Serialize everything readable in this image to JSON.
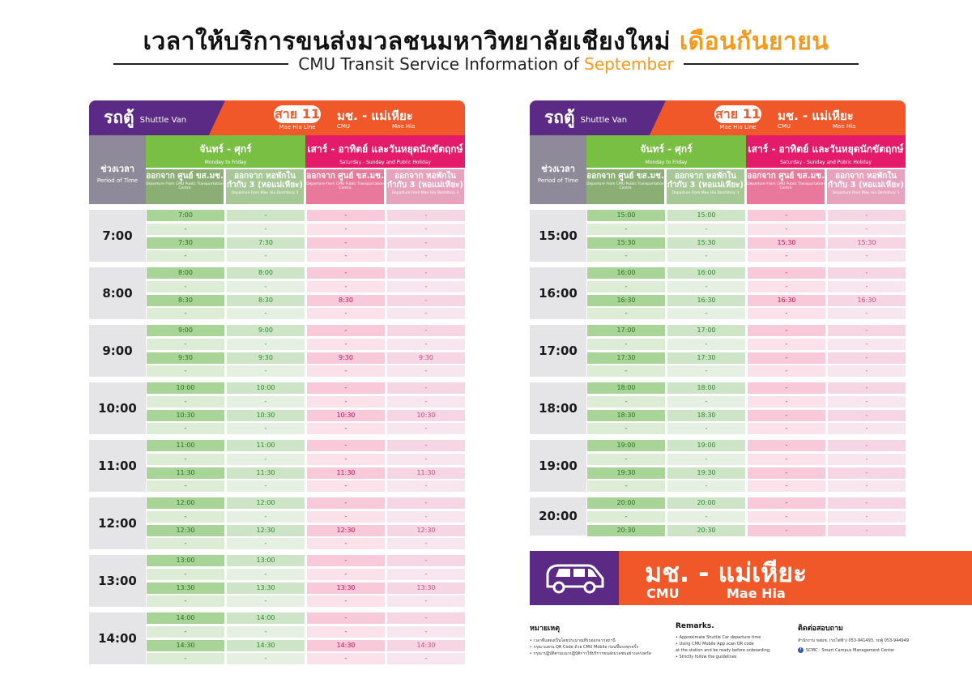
{
  "title": {
    "main": "เวลาให้บริการขนส่งมวลชนมหาวิทยาลัยเชียงใหม่",
    "month_th": "เดือนกันยายน",
    "sub": "CMU Transit Service Information of",
    "month_en": "September"
  },
  "header": {
    "van_th": "รถตู้",
    "van_en": "Shuttle Van",
    "line_label": "สาย 11",
    "line_en": "Mae Hia Line",
    "route_th": "มช. - แม่เหียะ",
    "route_en_from": "CMU",
    "route_en_to": "Mae Hia"
  },
  "columns": {
    "period_th": "ช่วงเวลา",
    "period_en": "Period of Time",
    "weekday_th": "จันทร์ - ศุกร์",
    "weekday_en": "Monday to Friday",
    "weekend_th": "เสาร์ - อาทิตย์ และวันหยุดนักขัตฤกษ์",
    "weekend_en": "Saturday - Sunday and Public Holiday",
    "depart_center_th": "ออกจาก ศูนย์ ขส.มช.",
    "depart_center_en": "Departure From CMU Public Transportation Centre",
    "depart_dorm_th": "ออกจาก หอพักในกำกับ 3 (หอแม่เหียะ)",
    "depart_dorm_en": "Departure from Mae Hia Dormitory 3"
  },
  "left_blocks": [
    {
      "hour": "7:00",
      "rows": [
        [
          "7:00",
          "-",
          "-",
          "-"
        ],
        [
          "-",
          "-",
          "-",
          "-"
        ],
        [
          "7:30",
          "7:30",
          "-",
          "-"
        ],
        [
          "-",
          "-",
          "-",
          "-"
        ]
      ]
    },
    {
      "hour": "8:00",
      "rows": [
        [
          "8:00",
          "8:00",
          "-",
          "-"
        ],
        [
          "-",
          "-",
          "-",
          "-"
        ],
        [
          "8:30",
          "8:30",
          "8:30",
          "-"
        ],
        [
          "-",
          "-",
          "-",
          "-"
        ]
      ]
    },
    {
      "hour": "9:00",
      "rows": [
        [
          "9:00",
          "9:00",
          "-",
          "-"
        ],
        [
          "-",
          "-",
          "-",
          "-"
        ],
        [
          "9:30",
          "9:30",
          "9:30",
          "9:30"
        ],
        [
          "-",
          "-",
          "-",
          "-"
        ]
      ]
    },
    {
      "hour": "10:00",
      "rows": [
        [
          "10:00",
          "10:00",
          "-",
          "-"
        ],
        [
          "-",
          "-",
          "-",
          "-"
        ],
        [
          "10:30",
          "10:30",
          "10:30",
          "10:30"
        ],
        [
          "-",
          "-",
          "-",
          "-"
        ]
      ]
    },
    {
      "hour": "11:00",
      "rows": [
        [
          "11:00",
          "11:00",
          "-",
          "-"
        ],
        [
          "-",
          "-",
          "-",
          "-"
        ],
        [
          "11:30",
          "11:30",
          "11:30",
          "11:30"
        ],
        [
          "-",
          "-",
          "-",
          "-"
        ]
      ]
    },
    {
      "hour": "12:00",
      "rows": [
        [
          "12:00",
          "12:00",
          "-",
          "-"
        ],
        [
          "-",
          "-",
          "-",
          "-"
        ],
        [
          "12:30",
          "12:30",
          "12:30",
          "12:30"
        ],
        [
          "-",
          "-",
          "-",
          "-"
        ]
      ]
    },
    {
      "hour": "13:00",
      "rows": [
        [
          "13:00",
          "13:00",
          "-",
          "-"
        ],
        [
          "-",
          "-",
          "-",
          "-"
        ],
        [
          "13:30",
          "13:30",
          "13:30",
          "13:30"
        ],
        [
          "-",
          "-",
          "-",
          "-"
        ]
      ]
    },
    {
      "hour": "14:00",
      "rows": [
        [
          "14:00",
          "14:00",
          "-",
          "-"
        ],
        [
          "-",
          "-",
          "-",
          "-"
        ],
        [
          "14:30",
          "14:30",
          "14:30",
          "14:30"
        ],
        [
          "-",
          "-",
          "-",
          "-"
        ]
      ]
    }
  ],
  "right_blocks": [
    {
      "hour": "15:00",
      "rows": [
        [
          "15:00",
          "15:00",
          "-",
          "-"
        ],
        [
          "-",
          "-",
          "-",
          "-"
        ],
        [
          "15:30",
          "15:30",
          "15:30",
          "15:30"
        ],
        [
          "-",
          "-",
          "-",
          "-"
        ]
      ]
    },
    {
      "hour": "16:00",
      "rows": [
        [
          "16:00",
          "16:00",
          "-",
          "-"
        ],
        [
          "-",
          "-",
          "-",
          "-"
        ],
        [
          "16:30",
          "16:30",
          "16:30",
          "16:30"
        ],
        [
          "-",
          "-",
          "-",
          "-"
        ]
      ]
    },
    {
      "hour": "17:00",
      "rows": [
        [
          "17:00",
          "17:00",
          "-",
          "-"
        ],
        [
          "-",
          "-",
          "-",
          "-"
        ],
        [
          "17:30",
          "17:30",
          "-",
          "-"
        ],
        [
          "-",
          "-",
          "-",
          "-"
        ]
      ]
    },
    {
      "hour": "18:00",
      "rows": [
        [
          "18:00",
          "18:00",
          "-",
          "-"
        ],
        [
          "-",
          "-",
          "-",
          "-"
        ],
        [
          "18:30",
          "18:30",
          "-",
          "-"
        ],
        [
          "-",
          "-",
          "-",
          "-"
        ]
      ]
    },
    {
      "hour": "19:00",
      "rows": [
        [
          "19:00",
          "19:00",
          "-",
          "-"
        ],
        [
          "-",
          "-",
          "-",
          "-"
        ],
        [
          "19:30",
          "19:30",
          "-",
          "-"
        ],
        [
          "-",
          "-",
          "-",
          "-"
        ]
      ]
    },
    {
      "hour": "20:00",
      "rows": [
        [
          "20:00",
          "20:00",
          "-",
          "-"
        ],
        [
          "-",
          "-",
          "-",
          "-"
        ],
        [
          "20:30",
          "20:30",
          "-",
          "-"
        ]
      ]
    }
  ],
  "banner": {
    "route_th": "มช. - แม่เหียะ",
    "from_en": "CMU",
    "to_en": "Mae Hia"
  },
  "notes_th": {
    "heading": "หมายเหตุ",
    "items": [
      "• เวลาที่แสดงเป็นโดยประมาณที่รถออกจากสถานี",
      "• กรุณาแสกน QR Code ด้วย CMU Mobile ก่อนขึ้นรถทุกครั้ง",
      "• กรุณาปฏิบัติตามแนวปฏิบัติการใช้บริการขนส่งมวลชนอย่างเคร่งครัด"
    ]
  },
  "notes_en": {
    "heading": "Remarks.",
    "items": [
      "• Approximate Shuttle Car departure time",
      "• Using CMU Mobile App scan QR code",
      "  at the station and be ready before onboarding.",
      "• Strictly follow the guidelines"
    ]
  },
  "contact": {
    "heading": "ติดต่อสอบถาม",
    "line1": "สำนักงาน ขสมช. (รถไฟฟ้า) 053-941493, รถตู้ 053-944949",
    "line2": "SCMC : Smart Campus Management Center"
  },
  "colors": {
    "purple": "#5a2a85",
    "orange": "#f0582a",
    "green": "#78bf44",
    "pink": "#e31b6a",
    "accent": "#f39a1e"
  }
}
